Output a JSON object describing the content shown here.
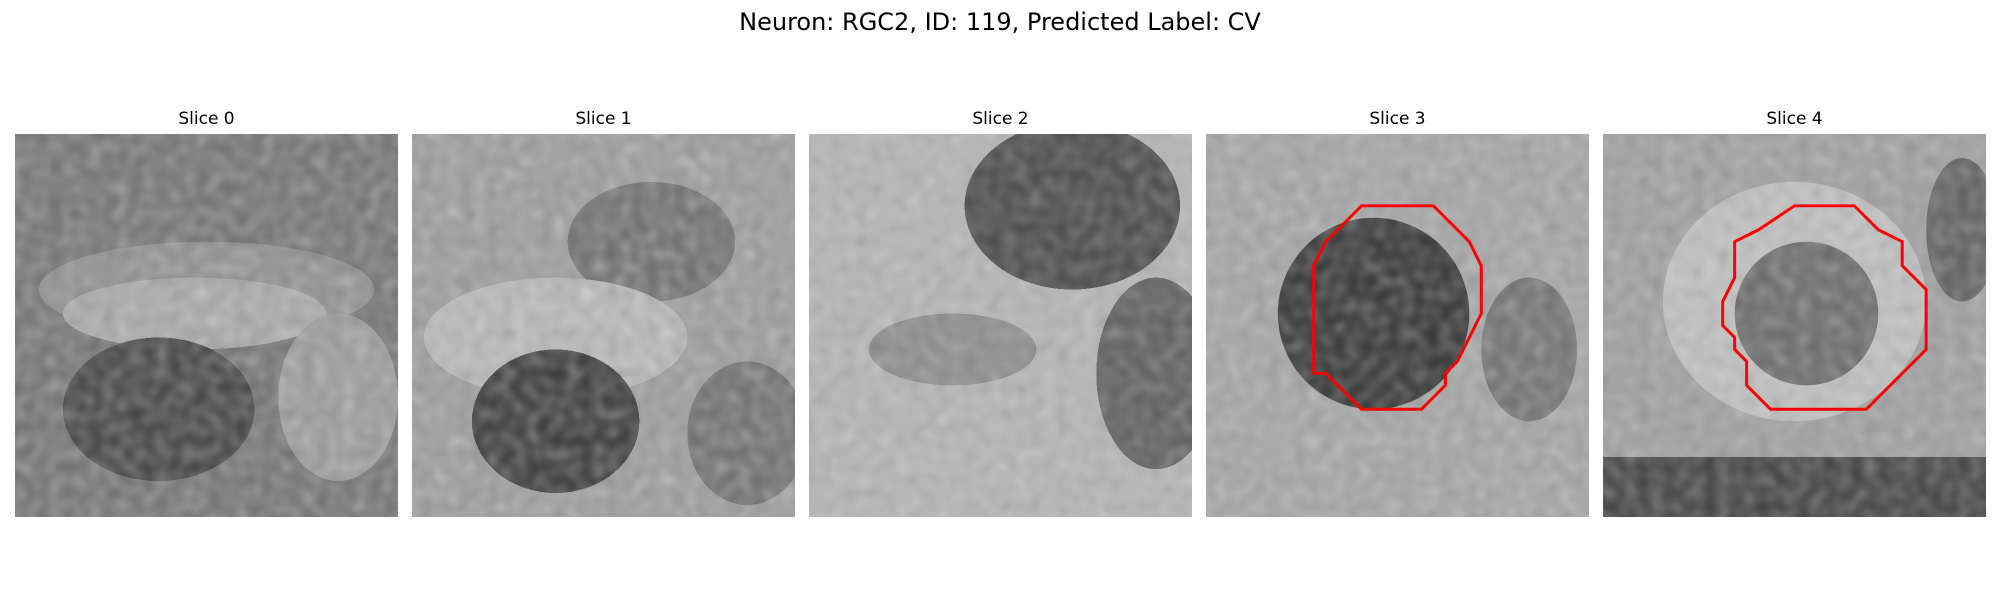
{
  "figure": {
    "title": "Neuron: RGC2, ID: 119, Predicted Label: CV"
  },
  "panels": [
    {
      "title": "Slice 0",
      "has_contour": false
    },
    {
      "title": "Slice 1",
      "has_contour": false
    },
    {
      "title": "Slice 2",
      "has_contour": false
    },
    {
      "title": "Slice 3",
      "has_contour": true
    },
    {
      "title": "Slice 4",
      "has_contour": true
    }
  ],
  "colors": {
    "background": "#ffffff",
    "contour": "#ff0000",
    "colormap": "grayscale"
  }
}
